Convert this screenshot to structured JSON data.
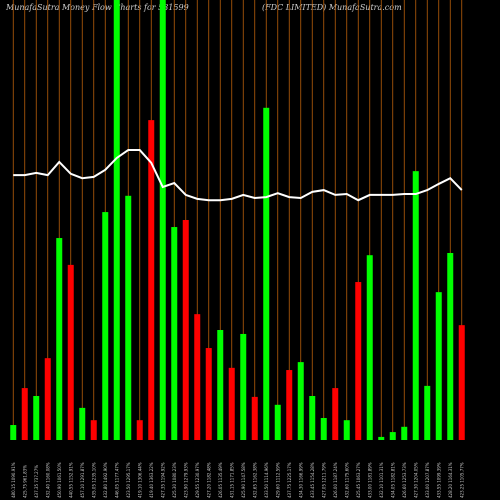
{
  "chart_data": {
    "type": "bar",
    "title": "MunafaSutra  Money Flow Charts for 531599",
    "subtitle": "(FDC LIMITED) MunafaSutra.com",
    "categories": [
      "480.15 1090.91%",
      "425.75 961.83%",
      "437.35 737.27%",
      "432.40 1160.08%",
      "450.90 1061.50%",
      "440.55 1152.91%",
      "457.10 1291.87%",
      "435.05 1235.10%",
      "432.80 1492.90%",
      "446.05 1177.47%",
      "423.50 1295.17%",
      "419.10 1306.44%",
      "419.40 1363.22%",
      "427.35 1194.92%",
      "425.30 1080.23%",
      "423.90 1279.93%",
      "429.55 1230.97%",
      "427.20 1182.48%",
      "426.05 1135.49%",
      "431.15 1171.85%",
      "425.90 1147.58%",
      "432.65 1162.38%",
      "433.50 1114.96%",
      "429.60 1112.59%",
      "437.75 1225.17%",
      "434.30 1166.99%",
      "433.45 1154.28%",
      "427.05 1211.79%",
      "426.00 1187.24%",
      "432.60 1175.60%",
      "425.45 1063.27%",
      "433.00 1181.89%",
      "432.10 1101.31%",
      "434.05 1182.81%",
      "426.60 1253.73%",
      "427.30 1204.05%",
      "433.00 1207.87%",
      "433.55 1099.39%",
      "428.20 1164.31%",
      "423.25 1105.77%"
    ],
    "series": [
      {
        "name": "inflow-outflow",
        "colors": [
          "#00ff00",
          "#ff0000",
          "#00ff00",
          "#ff0000",
          "#00ff00",
          "#ff0000",
          "#00ff00",
          "#ff0000",
          "#00ff00",
          "#00ff00",
          "#00ff00",
          "#ff0000",
          "#ff0000",
          "#00ff00",
          "#00ff00",
          "#ff0000",
          "#ff0000",
          "#ff0000",
          "#00ff00",
          "#ff0000",
          "#00ff00",
          "#ff0000",
          "#00ff00",
          "#00ff00",
          "#ff0000",
          "#00ff00",
          "#00ff00",
          "#00ff00",
          "#ff0000",
          "#00ff00",
          "#ff0000",
          "#00ff00",
          "#00ff00",
          "#00ff00",
          "#00ff00",
          "#00ff00",
          "#00ff00",
          "#00ff00",
          "#00ff00",
          "#ff0000"
        ],
        "values": [
          3.4,
          11.8,
          10,
          18.6,
          45.9,
          39.8,
          7.3,
          4.5,
          51.8,
          100,
          55.5,
          4.5,
          72.7,
          100,
          48.4,
          50,
          28.6,
          20.9,
          25,
          16.4,
          24.1,
          9.8,
          75.5,
          8,
          15.9,
          17.7,
          10,
          5,
          11.8,
          4.5,
          35.9,
          42,
          0.7,
          1.8,
          3,
          61.1,
          12.3,
          33.6,
          42.5,
          26.1
        ]
      },
      {
        "name": "price",
        "type": "line",
        "color": "#ffffff",
        "values": [
          60.2,
          60.2,
          60.7,
          60.2,
          63.2,
          60.5,
          59.5,
          59.8,
          61.4,
          64.1,
          65.9,
          65.9,
          63,
          57.5,
          58.4,
          55.7,
          54.8,
          54.5,
          54.5,
          54.8,
          55.7,
          55,
          55.2,
          56.1,
          55.2,
          55,
          56.4,
          56.8,
          55.7,
          55.9,
          54.5,
          55.7,
          55.7,
          55.7,
          55.9,
          55.9,
          56.8,
          58.2,
          59.5,
          56.8
        ]
      }
    ],
    "ylim": [
      0,
      100
    ],
    "grid_color": "#b8600b"
  }
}
